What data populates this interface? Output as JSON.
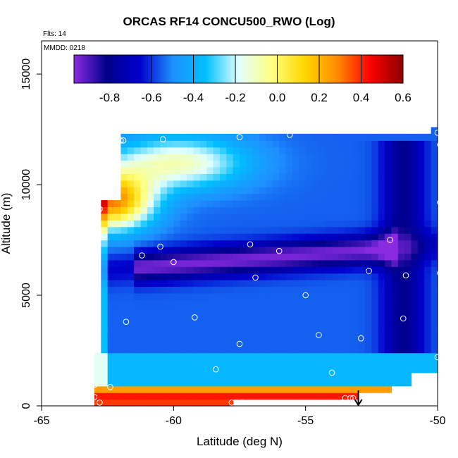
{
  "chart_data": {
    "type": "heatmap",
    "title": "ORCAS RF14 CONCU500_RWO (Log)",
    "annotations": {
      "flights": "Flts: 14",
      "date": "MMDD: 0218"
    },
    "xlabel": "Latitude (deg N)",
    "ylabel": "Altitude (m)",
    "xlim": [
      -65,
      -50
    ],
    "ylim": [
      0,
      16500
    ],
    "x_ticks": [
      -65,
      -60,
      -55,
      -50
    ],
    "x_tick_labels": [
      "-65",
      "-60",
      "-55",
      "-50"
    ],
    "y_ticks": [
      0,
      5000,
      10000,
      15000
    ],
    "y_tick_labels": [
      "0",
      "5000",
      "10000",
      "15000"
    ],
    "colorbar": {
      "range": [
        -0.97,
        0.6
      ],
      "ticks": [
        -0.8,
        -0.6,
        -0.4,
        -0.2,
        0.0,
        0.2,
        0.4,
        0.6
      ],
      "tick_labels": [
        "-0.8",
        "-0.6",
        "-0.4",
        "-0.2",
        "0.0",
        "0.2",
        "0.4",
        "0.6"
      ],
      "placement": "top inside plot",
      "colors": [
        "#8a2be2",
        "#00008b",
        "#0000cd",
        "#1e90ff",
        "#00bfff",
        "#e0ffff",
        "#ffff80",
        "#ffd700",
        "#ff8c00",
        "#ff0000",
        "#8b0000"
      ]
    },
    "flight_points": [
      {
        "lat": -62.0,
        "alt": 12000
      },
      {
        "lat": -61.9,
        "alt": 12000
      },
      {
        "lat": -60.4,
        "alt": 12050
      },
      {
        "lat": -57.5,
        "alt": 12150
      },
      {
        "lat": -55.6,
        "alt": 12250
      },
      {
        "lat": -50.0,
        "alt": 12350
      },
      {
        "lat": -49.9,
        "alt": 11800
      },
      {
        "lat": -62.8,
        "alt": 8900
      },
      {
        "lat": -49.9,
        "alt": 9200
      },
      {
        "lat": -51.8,
        "alt": 7500
      },
      {
        "lat": -57.1,
        "alt": 7300
      },
      {
        "lat": -60.5,
        "alt": 7200
      },
      {
        "lat": -56.0,
        "alt": 7000
      },
      {
        "lat": -61.2,
        "alt": 6800
      },
      {
        "lat": -60.0,
        "alt": 6500
      },
      {
        "lat": -52.6,
        "alt": 6100
      },
      {
        "lat": -51.2,
        "alt": 5900
      },
      {
        "lat": -56.9,
        "alt": 5800
      },
      {
        "lat": -49.9,
        "alt": 6000
      },
      {
        "lat": -55.0,
        "alt": 5000
      },
      {
        "lat": -59.2,
        "alt": 4000
      },
      {
        "lat": -51.3,
        "alt": 3950
      },
      {
        "lat": -61.8,
        "alt": 3800
      },
      {
        "lat": -54.5,
        "alt": 3200
      },
      {
        "lat": -52.9,
        "alt": 3050
      },
      {
        "lat": -57.5,
        "alt": 2800
      },
      {
        "lat": -50.0,
        "alt": 2200
      },
      {
        "lat": -58.4,
        "alt": 1650
      },
      {
        "lat": -54.0,
        "alt": 1500
      },
      {
        "lat": -63.0,
        "alt": 950
      },
      {
        "lat": -62.4,
        "alt": 850
      },
      {
        "lat": -63.0,
        "alt": 400
      },
      {
        "lat": -62.8,
        "alt": 150
      },
      {
        "lat": -57.8,
        "alt": 150
      },
      {
        "lat": -57.4,
        "alt": 150
      },
      {
        "lat": -53.5,
        "alt": 350
      },
      {
        "lat": -53.3,
        "alt": 350
      },
      {
        "lat": -53.2,
        "alt": 350
      }
    ],
    "arrow": {
      "lat": -53.0,
      "alt_from": 700,
      "alt_to": 0
    }
  }
}
